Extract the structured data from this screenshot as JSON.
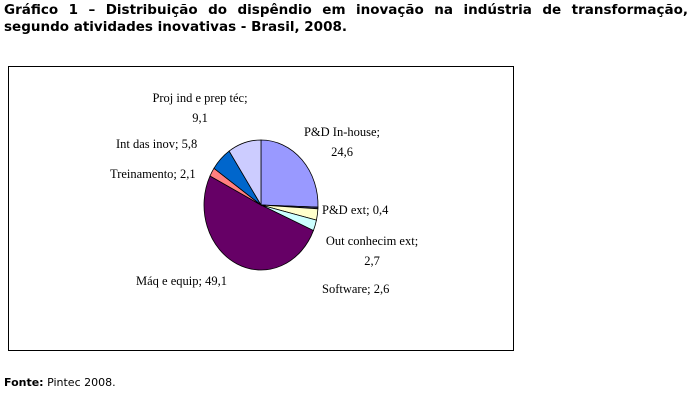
{
  "chart_data": {
    "type": "pie",
    "title": "Gráfico 1 – Distribuição do dispêndio em inovação na indústria de transformação, segundo atividades inovativas - Brasil, 2008.",
    "categories": [
      "P&D In-house;",
      "P&D ext;",
      "Out conhecim ext;",
      "Software;",
      "Máq e equip;",
      "Treinamento;",
      "Int das inov;",
      "Proj ind e prep téc;"
    ],
    "values": [
      24.6,
      0.4,
      2.7,
      2.6,
      49.1,
      2.1,
      5.8,
      9.1
    ],
    "value_labels": [
      "24,6",
      "0,4",
      "2,7",
      "2,6",
      "49,1",
      "2,1",
      "5,8",
      "9,1"
    ],
    "colors": [
      "#9999ff",
      "#333366",
      "#ffffcc",
      "#ccffff",
      "#660066",
      "#ff8080",
      "#0066cc",
      "#ccccff"
    ],
    "source_label": "Fonte:",
    "source": "Pintec 2008."
  }
}
